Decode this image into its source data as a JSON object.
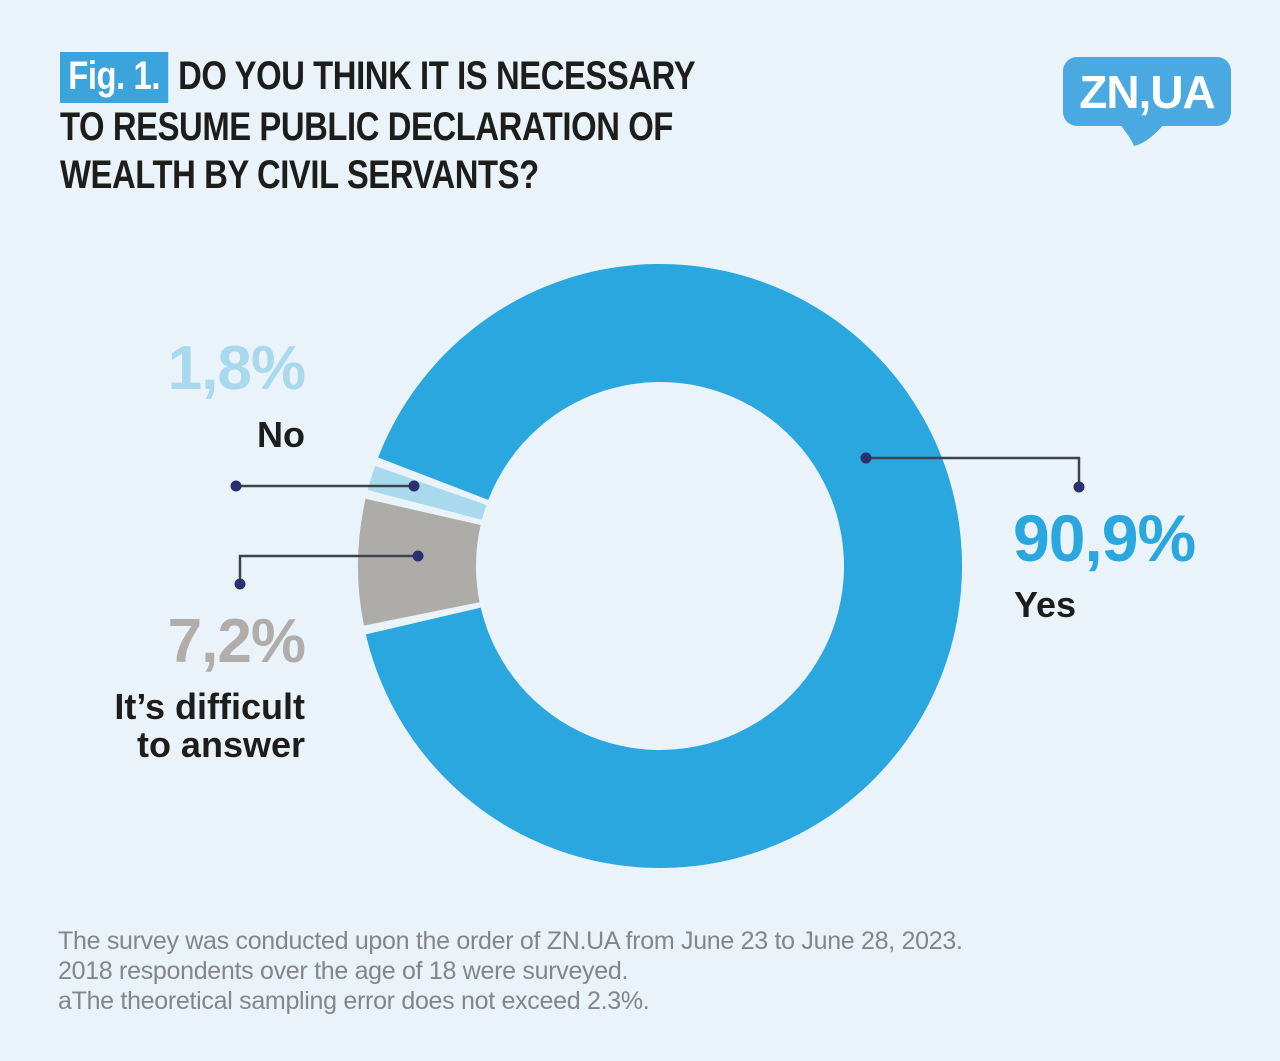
{
  "figure": {
    "badge_label": "Fig. 1.",
    "title_line1": "DO YOU THINK IT IS NECESSARY",
    "title_line2": "TO RESUME PUBLIC DECLARATION OF",
    "title_line3": "WEALTH BY CIVIL SERVANTS?"
  },
  "logo": {
    "text": "ZN,UA"
  },
  "chart_data": {
    "type": "pie",
    "donut": true,
    "title": "Do you think it is necessary to resume public declaration of wealth by civil servants?",
    "legend_position": "callout-labels",
    "start_angle_deg": 159.8,
    "direction": "clockwise",
    "slices": [
      {
        "label": "Yes",
        "value_pct": 90.9,
        "display_value": "90,9%",
        "color": "#29A7DE"
      },
      {
        "label": "It’s difficult to answer",
        "value_pct": 7.2,
        "display_value": "7,2%",
        "color": "#AEACA9"
      },
      {
        "label": "No",
        "value_pct": 1.8,
        "display_value": "1,8%",
        "color": "#A9D9EC"
      }
    ]
  },
  "footnote": {
    "line1": "The survey was conducted upon the order of ZN.UA from June 23 to June 28, 2023.",
    "line2": "2018 respondents over the age of 18 were surveyed.",
    "line3": "aThe theoretical sampling error does not exceed 2.3%."
  },
  "colors": {
    "background": "#EAF3FA",
    "accent_blue": "#29A7DE",
    "light_blue": "#A9D9EC",
    "gray": "#AEACA9",
    "text_dark": "#1D1D1B",
    "footnote_gray": "#83868B",
    "badge_blue": "#3BA4DD",
    "logo_blue": "#4AA9E0",
    "leader_line": "#3E424C",
    "leader_dot": "#2A316E"
  }
}
